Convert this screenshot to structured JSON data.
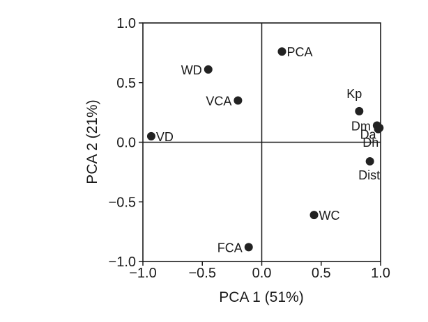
{
  "chart_data": {
    "type": "scatter",
    "title": "",
    "xlabel": "PCA 1 (51%)",
    "ylabel": "PCA 2 (21%)",
    "xlim": [
      -1.0,
      1.0
    ],
    "ylim": [
      -1.0,
      1.0
    ],
    "x_ticks": [
      -1.0,
      -0.5,
      0.0,
      0.5,
      1.0
    ],
    "x_tick_labels": [
      "−1.0",
      "−0.5",
      "0.0",
      "0.5",
      "1.0"
    ],
    "y_ticks": [
      -1.0,
      -0.5,
      0.0,
      0.5,
      1.0
    ],
    "y_tick_labels": [
      "−1.0",
      "−0.5",
      "0.0",
      "0.5",
      "1.0"
    ],
    "grid": false,
    "reference_lines": {
      "x": 0,
      "y": 0
    },
    "marker_color": "#222222",
    "points": [
      {
        "label": "PCA",
        "x": 0.17,
        "y": 0.76,
        "label_side": "right"
      },
      {
        "label": "WD",
        "x": -0.45,
        "y": 0.61,
        "label_side": "left"
      },
      {
        "label": "VCA",
        "x": -0.2,
        "y": 0.35,
        "label_side": "left"
      },
      {
        "label": "VD",
        "x": -0.93,
        "y": 0.05,
        "label_side": "right"
      },
      {
        "label": "Kp",
        "x": 0.82,
        "y": 0.26,
        "label_side": "above-left"
      },
      {
        "label": "Dm",
        "x": 0.97,
        "y": 0.14,
        "label_side": "left"
      },
      {
        "label": "Da",
        "x": 0.98,
        "y": 0.11,
        "label_side": "below-left"
      },
      {
        "label": "Dh",
        "x": 0.99,
        "y": 0.12,
        "label_side": "below-left-far"
      },
      {
        "label": "Dist",
        "x": 0.91,
        "y": -0.16,
        "label_side": "below"
      },
      {
        "label": "WC",
        "x": 0.44,
        "y": -0.61,
        "label_side": "right"
      },
      {
        "label": "FCA",
        "x": -0.11,
        "y": -0.88,
        "label_side": "left"
      }
    ]
  }
}
